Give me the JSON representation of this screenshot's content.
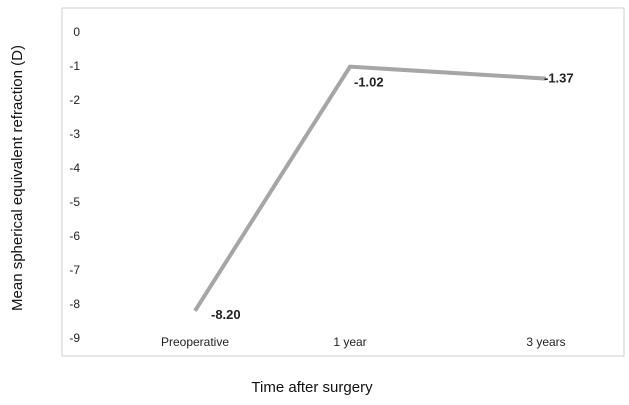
{
  "chart_data": {
    "type": "line",
    "categories": [
      "Preoperative",
      "1 year",
      "3 years"
    ],
    "series": [
      {
        "values": [
          -8.2,
          -1.02,
          -1.37
        ]
      }
    ],
    "data_labels": [
      "-8.20",
      "-1.02",
      "-1.37"
    ],
    "xlabel": "Time after surgery",
    "ylabel": "Mean spherical equivalent refraction (D)",
    "ylim": [
      -9,
      0
    ],
    "yticks": [
      "0",
      "-1",
      "-2",
      "-3",
      "-4",
      "-5",
      "-6",
      "-7",
      "-8",
      "-9"
    ],
    "line_color": "#a6a6a6",
    "grid": false,
    "legend": "none"
  }
}
